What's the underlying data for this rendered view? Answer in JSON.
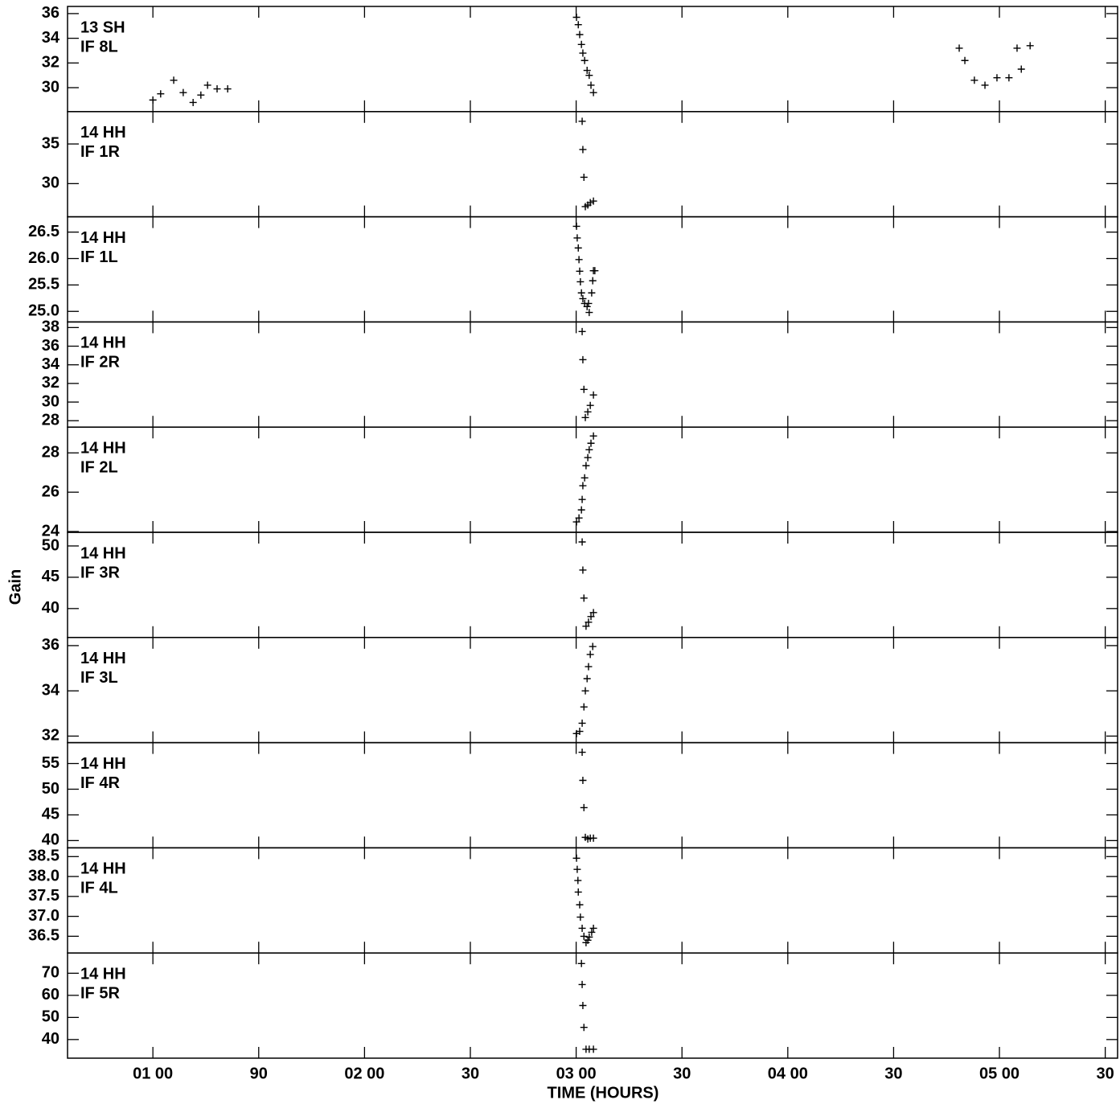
{
  "chart_data": {
    "type": "scatter",
    "ylabel": "Gain",
    "xlabel": "TIME (HOURS)",
    "color": "#000000",
    "marker": "+",
    "xlim": [
      35.8,
      333.5
    ],
    "xticks": [
      {
        "value": 60,
        "label": "01 00"
      },
      90,
      {
        "value": 120,
        "label": "02 00"
      },
      {
        "value": 150,
        "label": "30"
      },
      {
        "value": 180,
        "label": "03 00"
      },
      {
        "value": 210,
        "label": "30"
      },
      {
        "value": 240,
        "label": "04 00"
      },
      {
        "value": 270,
        "label": "30"
      },
      {
        "value": 300,
        "label": "05 00"
      },
      {
        "value": 330,
        "label": "30"
      }
    ],
    "panels": [
      {
        "labels": [
          "13 SH",
          "IF 8L"
        ],
        "ylim": [
          28.06,
          36.58
        ],
        "yticks": [
          30,
          32,
          34,
          36
        ],
        "x": [
          60.0,
          62.2,
          65.9,
          68.6,
          71.4,
          73.6,
          75.5,
          78.2,
          81.2,
          180.1,
          180.6,
          181.0,
          181.5,
          181.9,
          182.4,
          183.1,
          183.7,
          184.2,
          184.9,
          288.6,
          290.2,
          292.9,
          295.9,
          299.3,
          302.7,
          305.0,
          306.2,
          308.7
        ],
        "y": [
          29.0,
          29.5,
          30.6,
          29.6,
          28.8,
          29.4,
          30.2,
          29.9,
          29.9,
          35.7,
          35.1,
          34.3,
          33.5,
          32.8,
          32.2,
          31.4,
          31.0,
          30.2,
          29.6,
          33.2,
          32.2,
          30.6,
          30.2,
          30.8,
          30.8,
          33.2,
          31.5,
          33.4
        ]
      },
      {
        "labels": [
          "14 HH",
          "IF 1R"
        ],
        "ylim": [
          25.82,
          39.08
        ],
        "yticks": [
          30,
          35
        ],
        "x": [
          181.7,
          181.9,
          182.2,
          182.6,
          183.3,
          184.0,
          184.9
        ],
        "y": [
          37.86,
          34.3,
          30.8,
          27.1,
          27.3,
          27.6,
          27.8
        ]
      },
      {
        "labels": [
          "14 HH",
          "IF 1L"
        ],
        "ylim": [
          24.8,
          26.79
        ],
        "yticks": [
          {
            "value": 25,
            "label": "25.0"
          },
          25.5,
          {
            "value": 26,
            "label": "26.0"
          },
          26.5
        ],
        "x": [
          180.1,
          180.3,
          180.6,
          180.8,
          181.0,
          181.2,
          181.5,
          181.9,
          182.4,
          183.1,
          183.5,
          183.7,
          184.4,
          184.7,
          184.9,
          185.3
        ],
        "y": [
          26.61,
          26.39,
          26.2,
          25.98,
          25.76,
          25.56,
          25.35,
          25.24,
          25.15,
          25.09,
          25.15,
          24.98,
          25.35,
          25.58,
          25.77,
          25.77
        ]
      },
      {
        "labels": [
          "14 HH",
          "IF 2R"
        ],
        "ylim": [
          27.31,
          38.6
        ],
        "yticks": [
          28,
          30,
          32,
          34,
          36,
          38
        ],
        "x": [
          181.7,
          181.9,
          182.2,
          182.6,
          183.3,
          184.0,
          184.9
        ],
        "y": [
          37.57,
          34.55,
          31.36,
          28.34,
          28.95,
          29.64,
          30.76
        ]
      },
      {
        "labels": [
          "14 HH",
          "IF 2L"
        ],
        "ylim": [
          23.96,
          29.31
        ],
        "yticks": [
          24,
          26,
          28
        ],
        "x": [
          180.1,
          180.8,
          181.5,
          181.7,
          181.9,
          182.4,
          182.8,
          183.3,
          183.7,
          184.2,
          184.9
        ],
        "y": [
          24.49,
          24.69,
          25.1,
          25.63,
          26.33,
          26.73,
          27.35,
          27.76,
          28.16,
          28.49,
          28.86
        ]
      },
      {
        "labels": [
          "14 HH",
          "IF 3R"
        ],
        "ylim": [
          35.38,
          52.18
        ],
        "yticks": [
          40,
          45,
          50
        ],
        "x": [
          181.7,
          181.9,
          182.2,
          182.8,
          183.5,
          184.2,
          184.9
        ],
        "y": [
          50.64,
          46.15,
          41.67,
          37.18,
          37.82,
          38.72,
          39.36
        ]
      },
      {
        "labels": [
          "14 HH",
          "IF 3L"
        ],
        "ylim": [
          31.71,
          36.36
        ],
        "yticks": [
          32,
          34,
          36
        ],
        "x": [
          180.1,
          181.0,
          181.7,
          182.2,
          182.6,
          183.1,
          183.5,
          184.0,
          184.7
        ],
        "y": [
          32.11,
          32.21,
          32.57,
          33.29,
          34.0,
          34.54,
          35.07,
          35.61,
          35.96
        ]
      },
      {
        "labels": [
          "14 HH",
          "IF 4R"
        ],
        "ylim": [
          38.59,
          59.06
        ],
        "yticks": [
          40,
          45,
          50,
          55
        ],
        "x": [
          181.7,
          181.9,
          182.2,
          182.6,
          183.3,
          184.0,
          184.9
        ],
        "y": [
          57.19,
          51.72,
          46.41,
          40.63,
          40.31,
          40.47,
          40.47
        ]
      },
      {
        "labels": [
          "14 HH",
          "IF 4L"
        ],
        "ylim": [
          36.08,
          38.72
        ],
        "yticks": [
          36.5,
          {
            "value": 37,
            "label": "37.0"
          },
          37.5,
          {
            "value": 38,
            "label": "38.0"
          },
          38.5
        ],
        "x": [
          180.1,
          180.3,
          180.5,
          180.6,
          181.0,
          181.2,
          181.7,
          182.2,
          182.8,
          183.3,
          183.7,
          184.4,
          184.9
        ],
        "y": [
          38.46,
          38.18,
          37.9,
          37.61,
          37.29,
          36.98,
          36.7,
          36.5,
          36.34,
          36.4,
          36.48,
          36.6,
          36.7
        ]
      },
      {
        "labels": [
          "14 HH",
          "IF 5R"
        ],
        "ylim": [
          31.57,
          79.16
        ],
        "yticks": [
          40,
          50,
          60,
          70
        ],
        "x": [
          181.5,
          181.7,
          181.9,
          182.2,
          182.8,
          183.7,
          184.9
        ],
        "y": [
          74.4,
          64.9,
          55.4,
          45.5,
          35.6,
          35.6,
          35.6
        ]
      }
    ]
  }
}
